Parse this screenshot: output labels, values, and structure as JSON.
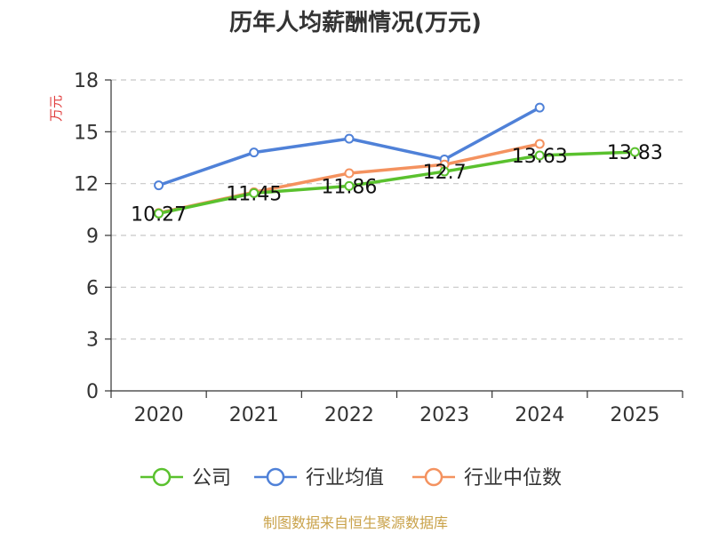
{
  "chart_data": {
    "type": "line",
    "title": "历年人均薪酬情况(万元)",
    "ylabel": "万元",
    "xlabel": "",
    "categories": [
      "2020",
      "2021",
      "2022",
      "2023",
      "2024",
      "2025"
    ],
    "ylim": [
      0,
      18
    ],
    "yticks": [
      0,
      3,
      6,
      9,
      12,
      15,
      18
    ],
    "grid": true,
    "legend_position": "bottom",
    "series": [
      {
        "name": "公司",
        "color": "#5ac12e",
        "values": [
          10.27,
          11.45,
          11.86,
          12.7,
          13.63,
          13.83
        ],
        "show_labels": true
      },
      {
        "name": "行业均值",
        "color": "#4f81d8",
        "values": [
          11.9,
          13.8,
          14.6,
          13.4,
          16.4,
          null
        ],
        "show_labels": false
      },
      {
        "name": "行业中位数",
        "color": "#f4925f",
        "values": [
          10.3,
          11.5,
          12.6,
          13.1,
          14.3,
          null
        ],
        "show_labels": false
      }
    ]
  },
  "source_text": "制图数据来自恒生聚源数据库"
}
